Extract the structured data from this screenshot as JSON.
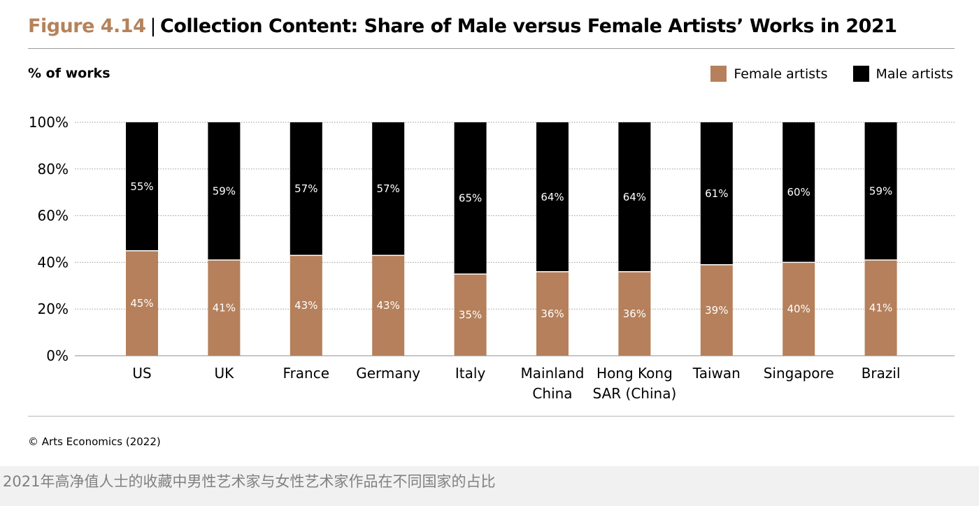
{
  "figure": {
    "number": "Figure 4.14",
    "title": "Collection Content: Share of Male versus Female Artists’ Works in 2021",
    "source": "© Arts Economics (2022)"
  },
  "caption": "2021年高净值人士的收藏中男性艺术家与女性艺术家作品在不同国家的占比",
  "colors": {
    "accent": "#b5825a",
    "female": "#b5805b",
    "male": "#000000",
    "grid": "#9a9a9a"
  },
  "chart_data": {
    "type": "bar",
    "stacked": true,
    "ylabel": "% of works",
    "ylim": [
      0,
      100
    ],
    "yticks": [
      "0%",
      "20%",
      "40%",
      "60%",
      "80%",
      "100%"
    ],
    "grid": "horizontal-dotted",
    "legend_position": "top-right",
    "categories": [
      [
        "US"
      ],
      [
        "UK"
      ],
      [
        "France"
      ],
      [
        "Germany"
      ],
      [
        "Italy"
      ],
      [
        "Mainland",
        "China"
      ],
      [
        "Hong Kong",
        "SAR (China)"
      ],
      [
        "Taiwan"
      ],
      [
        "Singapore"
      ],
      [
        "Brazil"
      ]
    ],
    "series": [
      {
        "name": "Female artists",
        "values": [
          45,
          41,
          43,
          43,
          35,
          36,
          36,
          39,
          40,
          41
        ],
        "labels": [
          "45%",
          "41%",
          "43%",
          "43%",
          "35%",
          "36%",
          "36%",
          "39%",
          "40%",
          "41%"
        ]
      },
      {
        "name": "Male artists",
        "values": [
          55,
          59,
          57,
          57,
          65,
          64,
          64,
          61,
          60,
          59
        ],
        "labels": [
          "55%",
          "59%",
          "57%",
          "57%",
          "65%",
          "64%",
          "64%",
          "61%",
          "60%",
          "59%"
        ]
      }
    ]
  }
}
